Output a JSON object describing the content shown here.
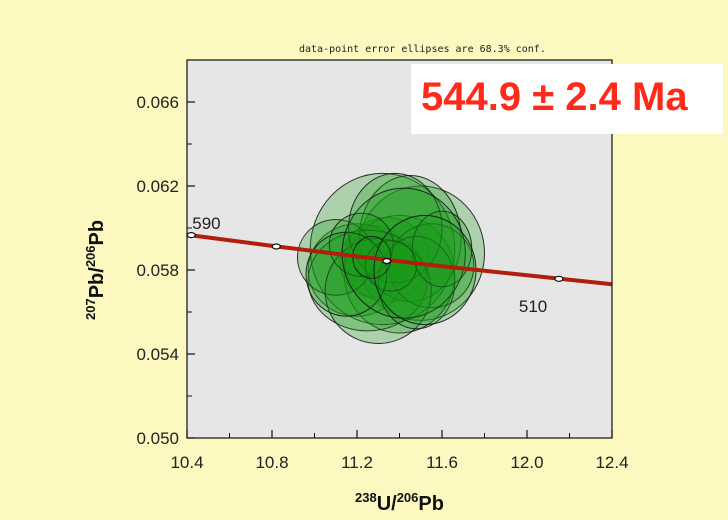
{
  "chart_data": {
    "type": "scatter",
    "subtype": "concordia-error-ellipses",
    "note": "data-point error ellipses are 68.3% conf.",
    "result_label": "544.9 ± 2.4 Ma",
    "xlabel": {
      "main": "U/",
      "sup1": "238",
      "sup2": "206",
      "end": "Pb"
    },
    "ylabel": {
      "sup1": "207",
      "mid": "Pb/",
      "sup2": "206",
      "end": "Pb"
    },
    "xlim": [
      10.4,
      12.4
    ],
    "ylim": [
      0.05,
      0.068
    ],
    "x_ticks": [
      "10.4",
      "10.8",
      "11.2",
      "11.6",
      "12.0",
      "12.4"
    ],
    "y_ticks": [
      "0.050",
      "0.054",
      "0.058",
      "0.062",
      "0.066"
    ],
    "grid": false,
    "concordia_curve": [
      [
        10.4,
        0.05968
      ],
      [
        10.8,
        0.05915
      ],
      [
        11.2,
        0.05865
      ],
      [
        11.6,
        0.05818
      ],
      [
        12.0,
        0.05775
      ],
      [
        12.4,
        0.05732
      ]
    ],
    "age_markers": [
      {
        "x": 10.42,
        "y": 0.05966,
        "label": "590"
      },
      {
        "x": 10.82,
        "y": 0.05912,
        "label": ""
      },
      {
        "x": 11.34,
        "y": 0.05843,
        "label": ""
      },
      {
        "x": 12.15,
        "y": 0.05758,
        "label": "510"
      }
    ],
    "concordia_point": {
      "x": 11.34,
      "y": 0.05843
    },
    "ellipses": [
      {
        "x": 11.28,
        "y": 0.0584,
        "sx": 0.16,
        "sy": 0.0017
      },
      {
        "x": 11.34,
        "y": 0.0585,
        "sx": 0.2,
        "sy": 0.002
      },
      {
        "x": 11.5,
        "y": 0.0588,
        "sx": 0.3,
        "sy": 0.0032
      },
      {
        "x": 11.2,
        "y": 0.058,
        "sx": 0.23,
        "sy": 0.0022
      },
      {
        "x": 11.4,
        "y": 0.0578,
        "sx": 0.26,
        "sy": 0.0028
      },
      {
        "x": 11.32,
        "y": 0.059,
        "sx": 0.34,
        "sy": 0.0036
      },
      {
        "x": 11.45,
        "y": 0.0595,
        "sx": 0.24,
        "sy": 0.003
      },
      {
        "x": 11.25,
        "y": 0.0575,
        "sx": 0.28,
        "sy": 0.0024
      },
      {
        "x": 11.55,
        "y": 0.0582,
        "sx": 0.2,
        "sy": 0.002
      },
      {
        "x": 11.1,
        "y": 0.0586,
        "sx": 0.18,
        "sy": 0.0018
      },
      {
        "x": 11.38,
        "y": 0.06,
        "sx": 0.22,
        "sy": 0.0026
      },
      {
        "x": 11.3,
        "y": 0.057,
        "sx": 0.25,
        "sy": 0.0025
      },
      {
        "x": 11.48,
        "y": 0.0574,
        "sx": 0.18,
        "sy": 0.0022
      },
      {
        "x": 11.22,
        "y": 0.0592,
        "sx": 0.15,
        "sy": 0.0015
      },
      {
        "x": 11.6,
        "y": 0.059,
        "sx": 0.14,
        "sy": 0.0018
      },
      {
        "x": 11.36,
        "y": 0.0582,
        "sx": 0.12,
        "sy": 0.0012
      },
      {
        "x": 11.15,
        "y": 0.0578,
        "sx": 0.19,
        "sy": 0.002
      },
      {
        "x": 11.42,
        "y": 0.0588,
        "sx": 0.29,
        "sy": 0.0031
      },
      {
        "x": 11.27,
        "y": 0.0586,
        "sx": 0.09,
        "sy": 0.001
      },
      {
        "x": 11.52,
        "y": 0.058,
        "sx": 0.24,
        "sy": 0.0026
      }
    ],
    "colors": {
      "page_background": "#fdf7c0",
      "plot_background": "#e6e6e6",
      "ellipse_fill": "#1a9a1a",
      "ellipse_stroke": "#111111",
      "concordia": "#b01e0e",
      "result_text": "#ff2a1a"
    }
  }
}
